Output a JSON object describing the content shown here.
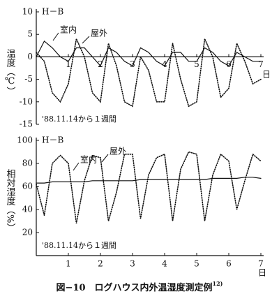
{
  "chart_data": [
    {
      "type": "line",
      "subtitle": "H－B",
      "y_label": "温度（℃）",
      "note": "'88.11.14から１週間",
      "x_unit": "日",
      "x": [
        0,
        0.25,
        0.5,
        0.75,
        1,
        1.25,
        1.5,
        1.75,
        2,
        2.25,
        2.5,
        2.75,
        3,
        3.25,
        3.5,
        3.75,
        4,
        4.25,
        4.5,
        4.75,
        5,
        5.25,
        5.5,
        5.75,
        6,
        6.25,
        6.5,
        6.75,
        7
      ],
      "series": [
        {
          "name": "室内",
          "color": "#111",
          "style": "solid",
          "values": [
            0,
            3.5,
            2,
            0,
            -1,
            2,
            2,
            0,
            -2,
            2,
            1,
            -1,
            -2,
            2,
            1,
            -1,
            -2,
            1,
            1,
            -1,
            -1,
            2,
            1,
            -1,
            -2,
            1,
            0,
            -1,
            -1
          ]
        },
        {
          "name": "屋外",
          "color": "#111",
          "style": "dotted",
          "values": [
            1,
            -1,
            -8,
            -10,
            -6,
            4,
            0,
            -8,
            -10,
            3,
            -2,
            -10,
            -11,
            0,
            -3,
            -10,
            -10,
            3,
            -5,
            -11,
            -10,
            4,
            0,
            -9,
            -7,
            3,
            -1,
            -6,
            -5
          ]
        }
      ],
      "xlim": [
        0,
        7
      ],
      "xticks": [
        1,
        2,
        3,
        4,
        5,
        6,
        7
      ],
      "ylim": [
        -15,
        10
      ],
      "yticks": [
        10,
        5,
        0,
        -5,
        -10,
        -15
      ]
    },
    {
      "type": "line",
      "subtitle": "H－B",
      "y_label": "相対湿度（%）",
      "note": "'88.11.14から１週間",
      "x_unit": "日",
      "x": [
        0,
        0.25,
        0.5,
        0.75,
        1,
        1.25,
        1.5,
        1.75,
        2,
        2.25,
        2.5,
        2.75,
        3,
        3.25,
        3.5,
        3.75,
        4,
        4.25,
        4.5,
        4.75,
        5,
        5.25,
        5.5,
        5.75,
        6,
        6.25,
        6.5,
        6.75,
        7
      ],
      "series": [
        {
          "name": "室内",
          "color": "#111",
          "style": "solid",
          "values": [
            63,
            63,
            64,
            64,
            64,
            64,
            64,
            65,
            65,
            65,
            65,
            65,
            65,
            66,
            66,
            66,
            66,
            66,
            66,
            66,
            66,
            66,
            67,
            67,
            67,
            67,
            68,
            68,
            67
          ]
        },
        {
          "name": "屋外",
          "color": "#111",
          "style": "dotted",
          "values": [
            62,
            35,
            80,
            87,
            80,
            28,
            65,
            87,
            85,
            30,
            55,
            88,
            88,
            32,
            70,
            85,
            88,
            30,
            75,
            90,
            88,
            30,
            70,
            88,
            82,
            40,
            65,
            88,
            82
          ]
        }
      ],
      "xlim": [
        0,
        7
      ],
      "xticks": [
        1,
        2,
        3,
        4,
        5,
        6,
        7
      ],
      "ylim": [
        0,
        100
      ],
      "yticks": [
        100,
        80,
        60,
        40,
        20
      ]
    }
  ],
  "caption": "図−10　ログハウス内外温湿度測定例",
  "caption_ref": "12)"
}
